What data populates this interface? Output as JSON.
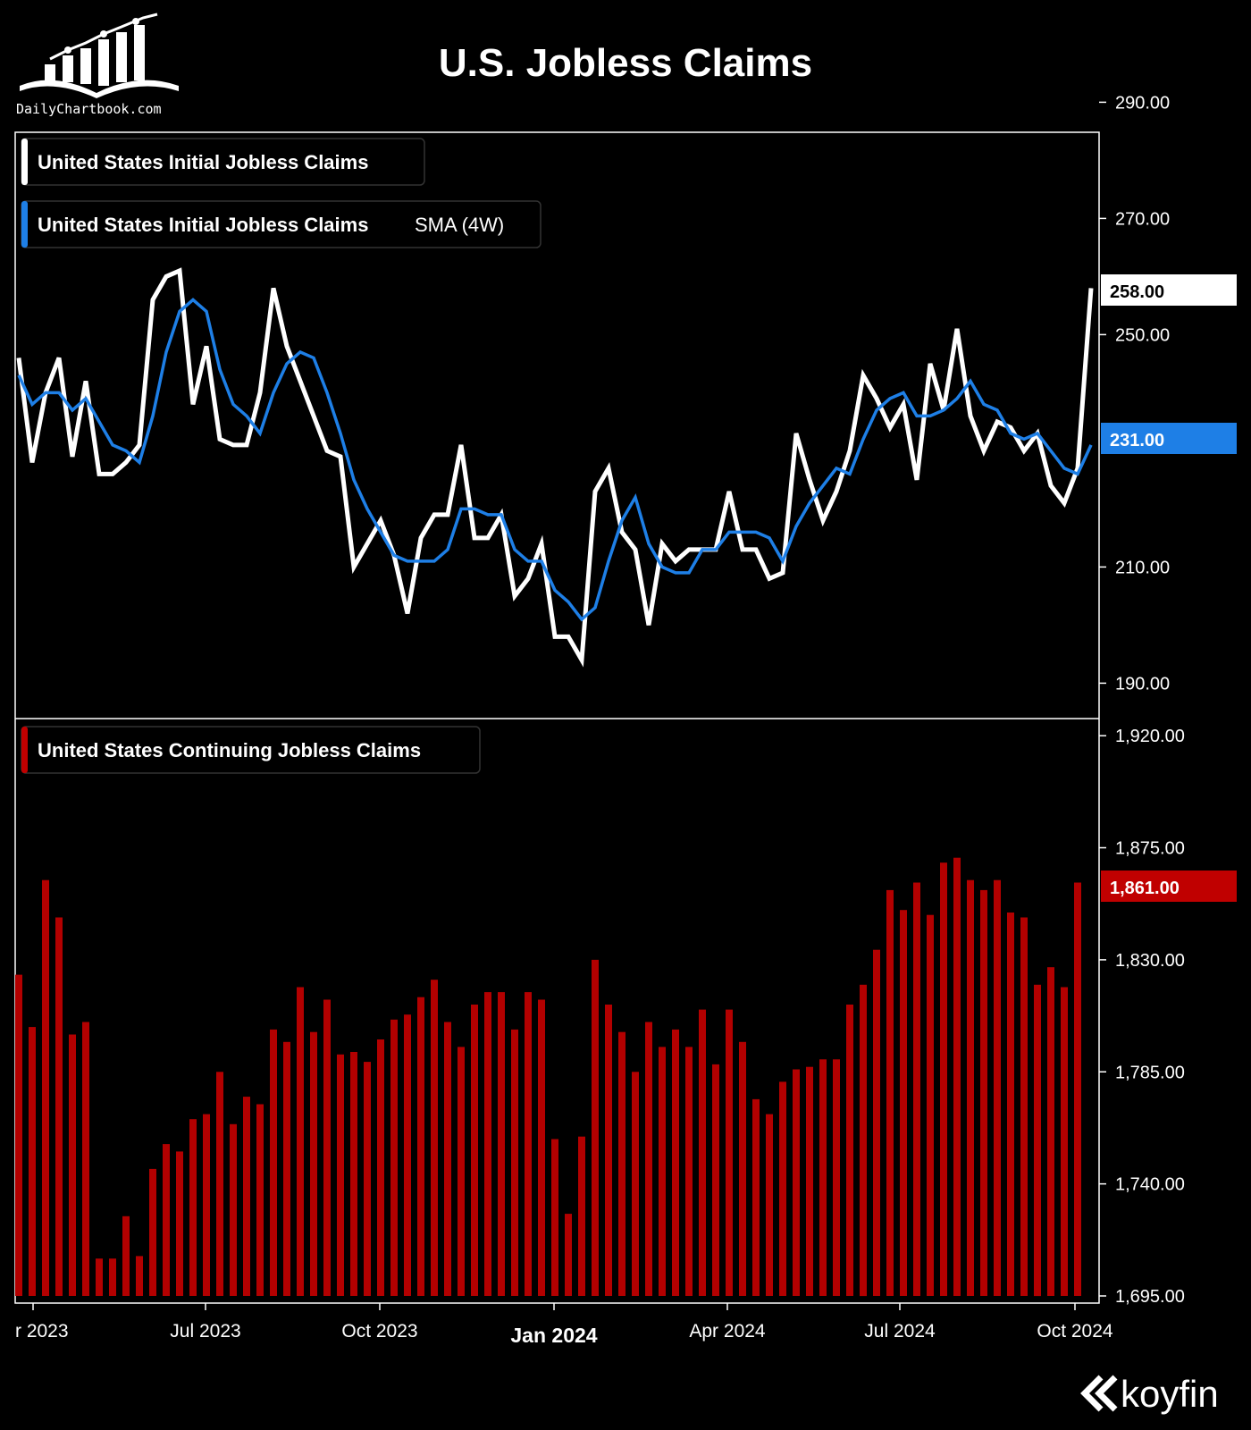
{
  "brand": {
    "site": "DailyChartbook.com",
    "koyfin": "koyfin"
  },
  "colors": {
    "background": "#000000",
    "initial_line": "#ffffff",
    "sma_line": "#1e7fe6",
    "continuing_bar": "#b30000",
    "continuing_badge": "#c00000",
    "sma_badge": "#1e7fe6"
  },
  "chart_data": [
    {
      "type": "line",
      "title": "U.S. Jobless Claims",
      "series": [
        {
          "name": "United States Initial Jobless Claims",
          "color": "#ffffff",
          "values": [
            246,
            228,
            240,
            246,
            229,
            242,
            226,
            226,
            228,
            231,
            256,
            260,
            261,
            238,
            248,
            232,
            231,
            231,
            240,
            258,
            248,
            242,
            236,
            230,
            229,
            210,
            214,
            218,
            212,
            202,
            215,
            219,
            219,
            231,
            215,
            215,
            219,
            205,
            208,
            214,
            198,
            198,
            194,
            223,
            227,
            216,
            213,
            200,
            214,
            211,
            213,
            213,
            213,
            223,
            213,
            213,
            208,
            209,
            233,
            225,
            218,
            223,
            230,
            243,
            239,
            234,
            238,
            225,
            245,
            237,
            251,
            236,
            230,
            235,
            234,
            230,
            233,
            224,
            221,
            227,
            258
          ]
        },
        {
          "name": "United States Initial Jobless Claims SMA (4W)",
          "label": "SMA (4W)",
          "color": "#1e7fe6",
          "values": [
            243,
            238,
            240,
            240,
            237,
            239,
            235,
            231,
            230,
            228,
            236,
            247,
            254,
            256,
            254,
            244,
            238,
            236,
            233,
            240,
            245,
            247,
            246,
            240,
            233,
            225,
            220,
            216,
            212,
            211,
            211,
            211,
            213,
            220,
            220,
            219,
            219,
            213,
            211,
            211,
            206,
            204,
            201,
            203,
            211,
            218,
            222,
            214,
            210,
            209,
            209,
            213,
            213,
            216,
            216,
            216,
            215,
            211,
            217,
            221,
            224,
            227,
            226,
            232,
            237,
            239,
            240,
            236,
            236,
            237,
            239,
            242,
            238,
            237,
            233,
            232,
            233,
            230,
            227,
            226,
            231
          ]
        }
      ],
      "last_values": {
        "initial": "258.00",
        "sma": "231.00"
      },
      "y_ticks": [
        "290.00",
        "270.00",
        "250.00",
        "210.00",
        "190.00"
      ],
      "y_tick_values": [
        290,
        270,
        250,
        210,
        190
      ],
      "ylim": [
        188,
        290
      ]
    },
    {
      "type": "bar",
      "series": [
        {
          "name": "United States Continuing Jobless Claims",
          "color": "#b30000",
          "values": [
            1824,
            1803,
            1862,
            1847,
            1800,
            1805,
            1710,
            1710,
            1727,
            1711,
            1746,
            1756,
            1753,
            1766,
            1768,
            1785,
            1764,
            1775,
            1772,
            1802,
            1797,
            1819,
            1801,
            1814,
            1792,
            1793,
            1789,
            1798,
            1806,
            1808,
            1815,
            1822,
            1805,
            1795,
            1812,
            1817,
            1817,
            1802,
            1817,
            1814,
            1758,
            1728,
            1759,
            1830,
            1812,
            1801,
            1785,
            1805,
            1795,
            1802,
            1795,
            1810,
            1788,
            1810,
            1797,
            1774,
            1768,
            1781,
            1786,
            1787,
            1790,
            1790,
            1812,
            1820,
            1834,
            1858,
            1850,
            1861,
            1848,
            1869,
            1871,
            1862,
            1858,
            1862,
            1849,
            1847,
            1820,
            1827,
            1819,
            1861
          ]
        }
      ],
      "last_value": "1,861.00",
      "y_ticks": [
        "1,920.00",
        "1,875.00",
        "1,830.00",
        "1,785.00",
        "1,740.00",
        "1,695.00"
      ],
      "y_tick_values": [
        1920,
        1875,
        1830,
        1785,
        1740,
        1695
      ],
      "ylim": [
        1695,
        1920
      ]
    }
  ],
  "x_axis": {
    "ticks": [
      {
        "label": "r 2023",
        "week": 0,
        "bold": false
      },
      {
        "label": "Jul 2023",
        "week": 13,
        "bold": false
      },
      {
        "label": "Oct 2023",
        "week": 26,
        "bold": false
      },
      {
        "label": "Jan 2024",
        "week": 39,
        "bold": true
      },
      {
        "label": "Apr 2024",
        "week": 52,
        "bold": false
      },
      {
        "label": "Jul 2024",
        "week": 65,
        "bold": false
      },
      {
        "label": "Oct 2024",
        "week": 78,
        "bold": false
      }
    ]
  }
}
